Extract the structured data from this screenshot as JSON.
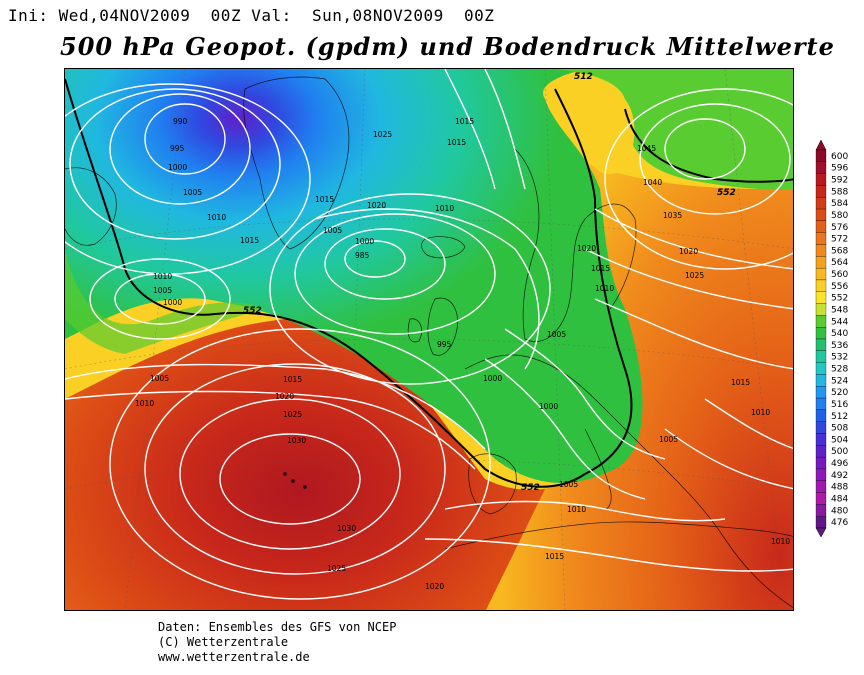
{
  "header": {
    "init_label": "Ini:",
    "init_value": "Wed,04NOV2009",
    "init_hour": "00Z",
    "valid_label": "Val:",
    "valid_value": "Sun,08NOV2009",
    "valid_hour": "00Z"
  },
  "title": "500 hPa Geopot. (gpdm) und Bodendruck Mittelwerte",
  "footer": {
    "line1": "Daten: Ensembles des GFS von NCEP",
    "line2": "(C) Wetterzentrale",
    "line3": "www.wetterzentrale.de"
  },
  "legend": {
    "levels": [
      "600",
      "596",
      "592",
      "588",
      "584",
      "580",
      "576",
      "572",
      "568",
      "564",
      "560",
      "556",
      "552",
      "548",
      "544",
      "540",
      "536",
      "532",
      "528",
      "524",
      "520",
      "516",
      "512",
      "508",
      "504",
      "500",
      "496",
      "492",
      "488",
      "484",
      "480",
      "476"
    ],
    "colors": [
      "#8c0a28",
      "#a0102e",
      "#b81a20",
      "#c8281a",
      "#d23a18",
      "#dc4c16",
      "#e46018",
      "#ec741a",
      "#f08a1c",
      "#f5a01e",
      "#f8b820",
      "#fad024",
      "#fae428",
      "#c8e030",
      "#58cc30",
      "#30c040",
      "#20c070",
      "#20c8a0",
      "#20c8c8",
      "#20b8e0",
      "#2098f0",
      "#2080f0",
      "#2060e8",
      "#3048e0",
      "#4830d8",
      "#6020c8",
      "#7818c0",
      "#9018b8",
      "#a018b0",
      "#b018a8",
      "#8818a0",
      "#601888"
    ]
  },
  "contours": {
    "main_label": "552",
    "secondary_label": "512"
  },
  "isobar_labels": [
    "990",
    "995",
    "1000",
    "1005",
    "1010",
    "1015",
    "1020",
    "1025",
    "1030",
    "985",
    "1035",
    "1040",
    "1045"
  ],
  "accent_colors": {
    "low_center": "#7030c8",
    "high_center": "#b01820",
    "ridge": "#fad024",
    "trough": "#20c8c8"
  }
}
